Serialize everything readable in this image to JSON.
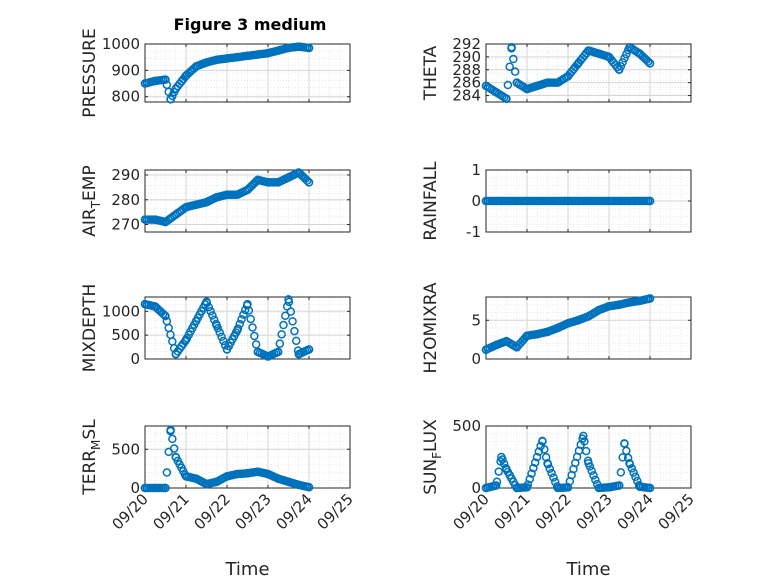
{
  "figure_title": "Figure 3 medium",
  "colors": {
    "marker": "#0072BD",
    "axis": "#262626",
    "grid": "#dcdcdc"
  },
  "chart_data": [
    {
      "type": "scatter",
      "ylabel": "PRESSURE",
      "ylim": [
        780,
        1000
      ],
      "yticks": [
        "800",
        "900",
        "1000"
      ],
      "grid": true,
      "x": [
        "09/20 00:00",
        "09/20 06:00",
        "09/20 12:00",
        "09/20 15:00",
        "09/20 18:00",
        "09/21 00:00",
        "09/21 06:00",
        "09/21 12:00",
        "09/21 18:00",
        "09/22 00:00",
        "09/22 06:00",
        "09/22 12:00",
        "09/22 18:00",
        "09/23 00:00",
        "09/23 06:00",
        "09/23 12:00",
        "09/23 18:00",
        "09/24 00:00"
      ],
      "y": [
        850,
        860,
        865,
        790,
        830,
        880,
        915,
        930,
        940,
        945,
        950,
        955,
        960,
        965,
        975,
        985,
        990,
        985
      ]
    },
    {
      "type": "scatter",
      "ylabel": "THETA",
      "ylim": [
        283,
        292
      ],
      "yticks": [
        "284",
        "286",
        "288",
        "290",
        "292"
      ],
      "grid": true,
      "x": [
        "09/20 00:00",
        "09/20 06:00",
        "09/20 12:00",
        "09/20 15:00",
        "09/20 18:00",
        "09/21 00:00",
        "09/21 06:00",
        "09/21 12:00",
        "09/21 18:00",
        "09/22 00:00",
        "09/22 06:00",
        "09/22 12:00",
        "09/22 18:00",
        "09/23 00:00",
        "09/23 06:00",
        "09/23 12:00",
        "09/23 18:00",
        "09/24 00:00"
      ],
      "y": [
        285.5,
        284.5,
        283.5,
        291.5,
        286,
        285,
        285.5,
        286,
        286,
        287,
        289,
        291,
        290.5,
        290,
        288,
        291.5,
        290.5,
        289
      ]
    },
    {
      "type": "scatter",
      "ylabel": "AIR_TEMP",
      "ylim": [
        267,
        292
      ],
      "yticks": [
        "270",
        "280",
        "290"
      ],
      "grid": true,
      "x": [
        "09/20 00:00",
        "09/20 06:00",
        "09/20 12:00",
        "09/20 18:00",
        "09/21 00:00",
        "09/21 06:00",
        "09/21 12:00",
        "09/21 18:00",
        "09/22 00:00",
        "09/22 06:00",
        "09/22 12:00",
        "09/22 18:00",
        "09/23 00:00",
        "09/23 06:00",
        "09/23 12:00",
        "09/23 18:00",
        "09/24 00:00"
      ],
      "y": [
        272,
        272,
        271,
        274,
        277,
        278,
        279,
        281,
        282,
        282,
        284,
        288,
        287,
        287,
        289,
        291,
        287
      ]
    },
    {
      "type": "scatter",
      "ylabel": "RAINFALL",
      "ylim": [
        -1,
        1
      ],
      "yticks": [
        "-1",
        "0",
        "1"
      ],
      "grid": true,
      "x": [
        "09/20 00:00",
        "09/24 00:00"
      ],
      "y": [
        0,
        0
      ]
    },
    {
      "type": "scatter",
      "ylabel": "MIXDEPTH",
      "ylim": [
        0,
        1300
      ],
      "yticks": [
        "0",
        "500",
        "1000"
      ],
      "grid": true,
      "x": [
        "09/20 00:00",
        "09/20 06:00",
        "09/20 12:00",
        "09/20 18:00",
        "09/21 00:00",
        "09/21 06:00",
        "09/21 12:00",
        "09/21 18:00",
        "09/22 00:00",
        "09/22 06:00",
        "09/22 12:00",
        "09/22 18:00",
        "09/23 00:00",
        "09/23 06:00",
        "09/23 12:00",
        "09/23 18:00",
        "09/24 00:00"
      ],
      "y": [
        1150,
        1100,
        900,
        100,
        400,
        800,
        1200,
        700,
        200,
        600,
        1150,
        150,
        50,
        150,
        1250,
        100,
        200
      ]
    },
    {
      "type": "scatter",
      "ylabel": "H2OMIXRA",
      "ylim": [
        0,
        8
      ],
      "yticks": [
        "0",
        "5"
      ],
      "grid": true,
      "x": [
        "09/20 00:00",
        "09/20 06:00",
        "09/20 12:00",
        "09/20 18:00",
        "09/21 00:00",
        "09/21 06:00",
        "09/21 12:00",
        "09/21 18:00",
        "09/22 00:00",
        "09/22 06:00",
        "09/22 12:00",
        "09/22 18:00",
        "09/23 00:00",
        "09/23 06:00",
        "09/23 12:00",
        "09/23 18:00",
        "09/24 00:00"
      ],
      "y": [
        1.2,
        1.8,
        2.3,
        1.5,
        3.0,
        3.2,
        3.5,
        4.0,
        4.6,
        5.0,
        5.5,
        6.3,
        6.8,
        7.0,
        7.3,
        7.5,
        7.8
      ]
    },
    {
      "type": "scatter",
      "ylabel": "TERR_MSL",
      "ylim": [
        0,
        800
      ],
      "yticks": [
        "0",
        "500"
      ],
      "grid": true,
      "x": [
        "09/20 00:00",
        "09/20 06:00",
        "09/20 12:00",
        "09/20 15:00",
        "09/20 18:00",
        "09/21 00:00",
        "09/21 06:00",
        "09/21 12:00",
        "09/21 18:00",
        "09/22 00:00",
        "09/22 06:00",
        "09/22 12:00",
        "09/22 18:00",
        "09/23 00:00",
        "09/23 06:00",
        "09/23 12:00",
        "09/23 18:00",
        "09/24 00:00"
      ],
      "y": [
        0,
        0,
        0,
        750,
        400,
        150,
        120,
        50,
        80,
        150,
        180,
        190,
        210,
        180,
        120,
        80,
        40,
        10
      ]
    },
    {
      "type": "scatter",
      "ylabel": "SUN_FLUX",
      "ylim": [
        0,
        500
      ],
      "yticks": [
        "0",
        "500"
      ],
      "grid": true,
      "x": [
        "09/20 00:00",
        "09/20 06:00",
        "09/20 09:00",
        "09/20 12:00",
        "09/20 18:00",
        "09/21 00:00",
        "09/21 09:00",
        "09/21 12:00",
        "09/21 18:00",
        "09/22 00:00",
        "09/22 09:00",
        "09/22 12:00",
        "09/22 18:00",
        "09/23 00:00",
        "09/23 06:00",
        "09/23 09:00",
        "09/23 12:00",
        "09/23 18:00",
        "09/24 00:00"
      ],
      "y": [
        0,
        20,
        250,
        150,
        0,
        5,
        380,
        200,
        0,
        5,
        420,
        200,
        0,
        5,
        20,
        360,
        200,
        10,
        0
      ]
    }
  ],
  "x_axis": {
    "ticklabels": [
      "09/20",
      "09/21",
      "09/22",
      "09/23",
      "09/24",
      "09/25"
    ],
    "label": "Time",
    "range": [
      "09/20",
      "09/25"
    ]
  }
}
